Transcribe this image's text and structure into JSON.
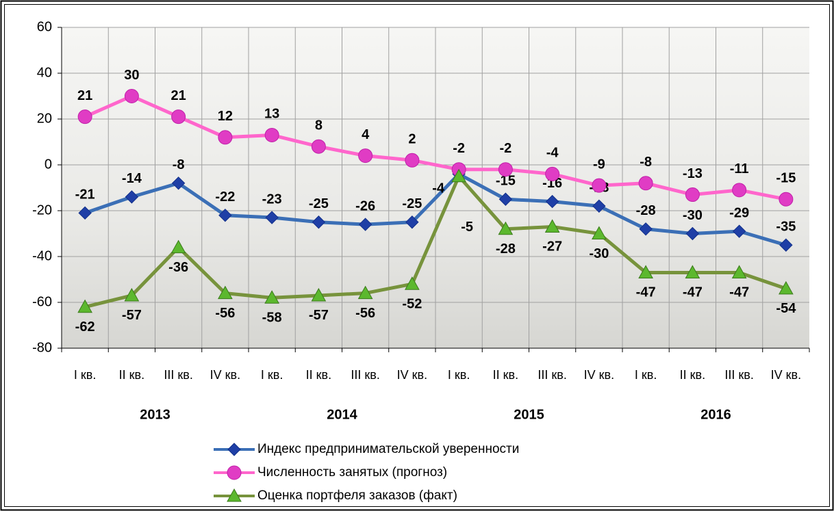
{
  "chart_data": {
    "type": "line",
    "categories": [
      "I кв.",
      "II кв.",
      "III кв.",
      "IV кв.",
      "I кв.",
      "II кв.",
      "III кв.",
      "IV кв.",
      "I кв.",
      "II кв.",
      "III кв.",
      "IV кв.",
      "I кв.",
      "II кв.",
      "III кв.",
      "IV кв."
    ],
    "groups": [
      "2013",
      "2014",
      "2015",
      "2016"
    ],
    "ylim": [
      -80,
      60
    ],
    "yticks": [
      -80,
      -60,
      -40,
      -20,
      0,
      20,
      40,
      60
    ],
    "grid": true,
    "legend": "bottom",
    "series": [
      {
        "name": "Индекс предпринимательской уверенности",
        "color": "#3b6fb6",
        "marker": "diamond",
        "marker_color": "#1f3fa6",
        "values": [
          -21,
          -14,
          -8,
          -22,
          -23,
          -25,
          -26,
          -25,
          -4,
          -15,
          -16,
          -18,
          -28,
          -30,
          -29,
          -35
        ]
      },
      {
        "name": "Численность занятых (прогноз)",
        "color": "#ff66cc",
        "marker": "circle",
        "marker_color": "#e03cc4",
        "values": [
          21,
          30,
          21,
          12,
          13,
          8,
          4,
          2,
          -2,
          -2,
          -4,
          -9,
          -8,
          -13,
          -11,
          -15
        ]
      },
      {
        "name": "Оценка портфеля заказов (факт)",
        "color": "#77933c",
        "marker": "triangle",
        "marker_color": "#5cb82e",
        "values": [
          -62,
          -57,
          -36,
          -56,
          -58,
          -57,
          -56,
          -52,
          -5,
          -28,
          -27,
          -30,
          -47,
          -47,
          -47,
          -54
        ]
      }
    ]
  }
}
